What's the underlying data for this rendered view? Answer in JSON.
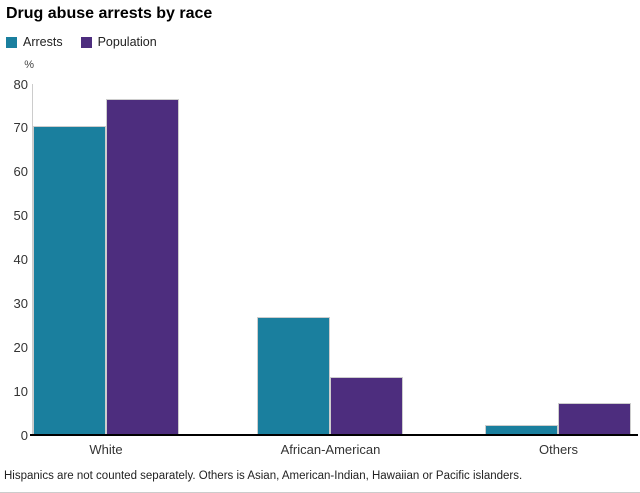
{
  "title": "Drug abuse arrests by race",
  "axis": {
    "unit_label": "%"
  },
  "legend": {
    "items": [
      {
        "label": "Arrests",
        "color": "#1A7F9E"
      },
      {
        "label": "Population",
        "color": "#4D2D7E"
      }
    ]
  },
  "footnote": "Hispanics are not counted separately. Others is Asian, American-Indian, Hawaiian or Pacific islanders.",
  "colors": {
    "arrests": "#1A7F9E",
    "population": "#4D2D7E",
    "axis_line": "#cccccc",
    "baseline": "#000000",
    "text": "#333333"
  },
  "chart_data": {
    "type": "bar",
    "title": "Drug abuse arrests by race",
    "categories": [
      "White",
      "African-American",
      "Others"
    ],
    "series": [
      {
        "name": "Arrests",
        "color": "#1A7F9E",
        "values": [
          70.5,
          27.0,
          2.2
        ]
      },
      {
        "name": "Population",
        "color": "#4D2D7E",
        "values": [
          76.5,
          13.2,
          7.2
        ]
      }
    ],
    "xlabel": "",
    "ylabel": "%",
    "ylim": [
      0,
      80
    ],
    "yticks": [
      0,
      10,
      20,
      30,
      40,
      50,
      60,
      70,
      80
    ],
    "grid": false,
    "legend_position": "top-left",
    "note": "Hispanics are not counted separately. Others is Asian, American-Indian, Hawaiian or Pacific islanders."
  }
}
